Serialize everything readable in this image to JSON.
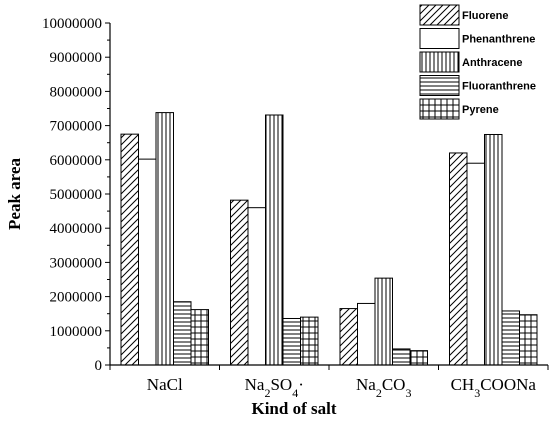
{
  "chart_data": {
    "type": "bar",
    "xlabel": "Kind of salt",
    "ylabel": "Peak area",
    "ylim": [
      0,
      10000000
    ],
    "yticks": [
      0,
      1000000,
      2000000,
      3000000,
      4000000,
      5000000,
      6000000,
      7000000,
      8000000,
      9000000,
      10000000
    ],
    "grid": false,
    "legend_position": "top-right",
    "categories": [
      "NaCl",
      "Na2SO4·",
      "Na2CO3",
      "CH3COONa"
    ],
    "category_labels": [
      [
        {
          "t": "NaCl",
          "sub": false
        }
      ],
      [
        {
          "t": "Na",
          "sub": false
        },
        {
          "t": "2",
          "sub": true
        },
        {
          "t": "SO",
          "sub": false
        },
        {
          "t": "4",
          "sub": true
        },
        {
          "t": "·",
          "sub": false
        }
      ],
      [
        {
          "t": "Na",
          "sub": false
        },
        {
          "t": "2",
          "sub": true
        },
        {
          "t": "CO",
          "sub": false
        },
        {
          "t": "3",
          "sub": true
        }
      ],
      [
        {
          "t": "CH",
          "sub": false
        },
        {
          "t": "3",
          "sub": true
        },
        {
          "t": "COONa",
          "sub": false
        }
      ]
    ],
    "series": [
      {
        "name": "Fluorene",
        "pattern": "diagonal",
        "values": [
          6750000,
          4820000,
          1650000,
          6200000
        ]
      },
      {
        "name": "Phenanthrene",
        "pattern": "empty",
        "values": [
          6020000,
          4600000,
          1800000,
          5900000
        ]
      },
      {
        "name": "Anthracene",
        "pattern": "vertical",
        "values": [
          7380000,
          7310000,
          2540000,
          6740000
        ]
      },
      {
        "name": "Fluoranthrene",
        "pattern": "horizontal",
        "values": [
          1850000,
          1360000,
          470000,
          1580000
        ]
      },
      {
        "name": "Pyrene",
        "pattern": "grid",
        "values": [
          1620000,
          1400000,
          420000,
          1470000
        ]
      }
    ]
  }
}
